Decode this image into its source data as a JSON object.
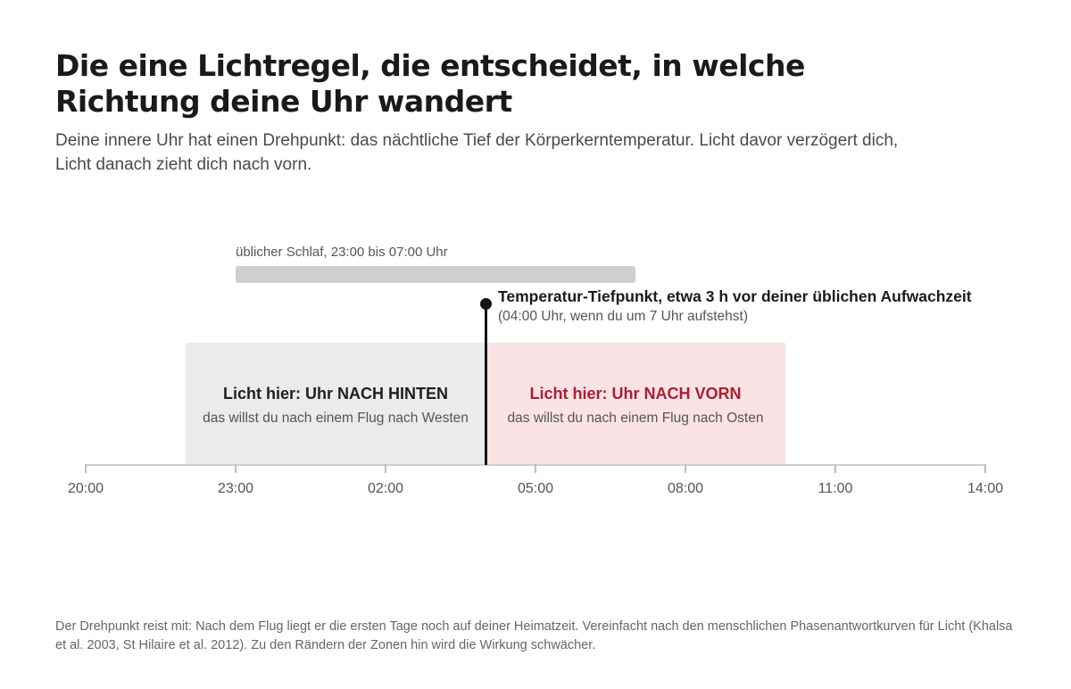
{
  "title": "Die eine Lichtregel, die entscheidet, in welche Richtung deine Uhr wandert",
  "subtitle": "Deine innere Uhr hat einen Drehpunkt: das nächtliche Tief der Körperkerntemperatur. Licht davor verzögert dich, Licht danach zieht dich nach vorn.",
  "timeline": {
    "hours_start": 20,
    "hours_end": 38,
    "ticks": [
      {
        "hour": 20,
        "label": "20:00"
      },
      {
        "hour": 23,
        "label": "23:00"
      },
      {
        "hour": 26,
        "label": "02:00"
      },
      {
        "hour": 29,
        "label": "05:00"
      },
      {
        "hour": 32,
        "label": "08:00"
      },
      {
        "hour": 35,
        "label": "11:00"
      },
      {
        "hour": 38,
        "label": "14:00"
      }
    ],
    "sleep": {
      "label": "üblicher Schlaf, 23:00 bis 07:00 Uhr",
      "start": 23,
      "end": 31
    },
    "zones": {
      "back": {
        "title": "Licht hier: Uhr NACH HINTEN",
        "subtitle": "das willst du nach einem Flug nach Westen",
        "start": 22,
        "end": 28,
        "color": "#ebebeb"
      },
      "forward": {
        "title": "Licht hier: Uhr NACH VORN",
        "subtitle": "das willst du nach einem Flug nach Osten",
        "start": 28,
        "end": 34,
        "color": "#f9e3e5",
        "text_color": "#b01c2e"
      }
    },
    "pivot": {
      "hour": 28,
      "title": "Temperatur-Tiefpunkt, etwa 3 h vor deiner üblichen Aufwachzeit",
      "subtitle": "(04:00 Uhr, wenn du um 7 Uhr aufstehst)"
    }
  },
  "footnote": "Der Drehpunkt reist mit: Nach dem Flug liegt er die ersten Tage noch auf deiner Heimatzeit. Vereinfacht nach den menschlichen Phasenantwortkurven für Licht (Khalsa et al. 2003, St Hilaire et al. 2012). Zu den Rändern der Zonen hin wird die Wirkung schwächer."
}
